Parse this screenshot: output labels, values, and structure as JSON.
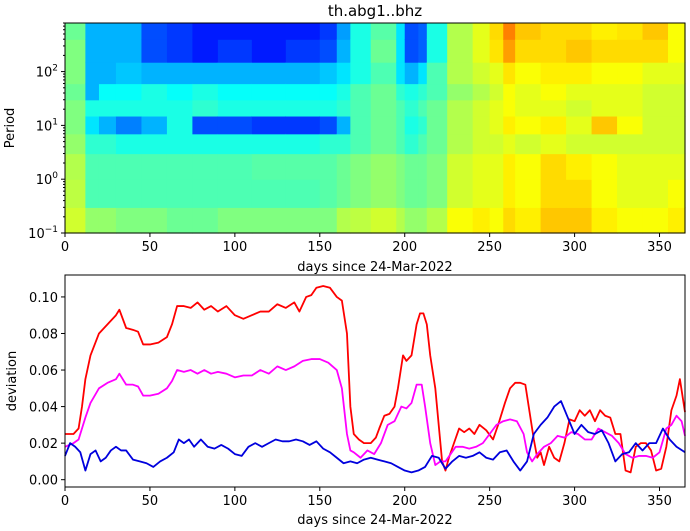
{
  "chart_data": [
    {
      "type": "heatmap",
      "title": "th.abg1..bhz",
      "xlabel": "days since 24-Mar-2022",
      "ylabel": "Period",
      "xlim": [
        0,
        365
      ],
      "ylim": [
        0.1,
        800
      ],
      "y_scale": "log",
      "colormap": "jet",
      "x_ticks": [
        0,
        50,
        100,
        150,
        200,
        250,
        300,
        350
      ],
      "x_tick_labels": [
        "0",
        "50",
        "100",
        "150",
        "200",
        "250",
        "300",
        "350"
      ],
      "y_ticks": [
        0.1,
        1,
        10,
        100
      ],
      "y_tick_labels": [
        "10",
        "10",
        "10",
        "10"
      ],
      "y_tick_exponents": [
        "−1",
        "0",
        "1",
        "2"
      ],
      "x_breaks": [
        0,
        12,
        20,
        30,
        45,
        60,
        75,
        90,
        110,
        130,
        150,
        160,
        168,
        180,
        195,
        200,
        208,
        213,
        225,
        240,
        250,
        258,
        265,
        280,
        295,
        310,
        325,
        340,
        355,
        365
      ],
      "period_bands": [
        0.1,
        0.3,
        1,
        3,
        7,
        15,
        30,
        60,
        150,
        400,
        800
      ],
      "values": [
        [
          0.58,
          0.56,
          0.55,
          0.52,
          0.5,
          0.5,
          0.48,
          0.5,
          0.5,
          0.48
        ],
        [
          0.52,
          0.45,
          0.45,
          0.42,
          0.35,
          0.4,
          0.3,
          0.3,
          0.3,
          0.3
        ],
        [
          0.52,
          0.45,
          0.45,
          0.42,
          0.3,
          0.4,
          0.38,
          0.3,
          0.3,
          0.3
        ],
        [
          0.5,
          0.45,
          0.45,
          0.4,
          0.25,
          0.4,
          0.38,
          0.32,
          0.3,
          0.3
        ],
        [
          0.5,
          0.45,
          0.45,
          0.4,
          0.3,
          0.4,
          0.4,
          0.3,
          0.2,
          0.2
        ],
        [
          0.48,
          0.45,
          0.45,
          0.4,
          0.4,
          0.4,
          0.38,
          0.3,
          0.18,
          0.18
        ],
        [
          0.48,
          0.45,
          0.45,
          0.4,
          0.2,
          0.42,
          0.4,
          0.3,
          0.15,
          0.15
        ],
        [
          0.5,
          0.45,
          0.45,
          0.4,
          0.2,
          0.4,
          0.38,
          0.3,
          0.18,
          0.15
        ],
        [
          0.5,
          0.45,
          0.46,
          0.4,
          0.18,
          0.4,
          0.38,
          0.3,
          0.15,
          0.15
        ],
        [
          0.5,
          0.45,
          0.46,
          0.4,
          0.18,
          0.4,
          0.38,
          0.3,
          0.18,
          0.15
        ],
        [
          0.5,
          0.46,
          0.46,
          0.42,
          0.2,
          0.4,
          0.38,
          0.32,
          0.2,
          0.18
        ],
        [
          0.55,
          0.48,
          0.48,
          0.42,
          0.3,
          0.42,
          0.4,
          0.35,
          0.3,
          0.28
        ],
        [
          0.56,
          0.5,
          0.5,
          0.45,
          0.45,
          0.45,
          0.45,
          0.4,
          0.4,
          0.4
        ],
        [
          0.58,
          0.52,
          0.52,
          0.48,
          0.48,
          0.48,
          0.48,
          0.45,
          0.48,
          0.46
        ],
        [
          0.55,
          0.5,
          0.5,
          0.45,
          0.45,
          0.45,
          0.42,
          0.35,
          0.35,
          0.35
        ],
        [
          0.52,
          0.48,
          0.48,
          0.42,
          0.4,
          0.42,
          0.4,
          0.3,
          0.2,
          0.2
        ],
        [
          0.52,
          0.48,
          0.48,
          0.45,
          0.42,
          0.45,
          0.42,
          0.35,
          0.22,
          0.22
        ],
        [
          0.55,
          0.5,
          0.5,
          0.48,
          0.48,
          0.48,
          0.45,
          0.45,
          0.4,
          0.4
        ],
        [
          0.62,
          0.58,
          0.58,
          0.55,
          0.55,
          0.55,
          0.52,
          0.55,
          0.55,
          0.55
        ],
        [
          0.64,
          0.6,
          0.6,
          0.58,
          0.58,
          0.58,
          0.55,
          0.58,
          0.6,
          0.6
        ],
        [
          0.62,
          0.6,
          0.6,
          0.58,
          0.6,
          0.6,
          0.58,
          0.6,
          0.65,
          0.66
        ],
        [
          0.66,
          0.64,
          0.64,
          0.6,
          0.64,
          0.62,
          0.62,
          0.65,
          0.72,
          0.75
        ],
        [
          0.64,
          0.62,
          0.62,
          0.58,
          0.62,
          0.6,
          0.6,
          0.62,
          0.66,
          0.68
        ],
        [
          0.68,
          0.66,
          0.66,
          0.6,
          0.64,
          0.6,
          0.62,
          0.64,
          0.66,
          0.66
        ],
        [
          0.68,
          0.66,
          0.64,
          0.58,
          0.6,
          0.58,
          0.6,
          0.64,
          0.68,
          0.66
        ],
        [
          0.64,
          0.62,
          0.62,
          0.58,
          0.68,
          0.6,
          0.6,
          0.62,
          0.66,
          0.64
        ],
        [
          0.62,
          0.6,
          0.6,
          0.58,
          0.62,
          0.6,
          0.6,
          0.62,
          0.66,
          0.65
        ],
        [
          0.62,
          0.6,
          0.6,
          0.58,
          0.58,
          0.58,
          0.58,
          0.6,
          0.66,
          0.68
        ],
        [
          0.64,
          0.62,
          0.6,
          0.58,
          0.58,
          0.58,
          0.58,
          0.6,
          0.62,
          0.62
        ]
      ]
    },
    {
      "type": "line",
      "xlabel": "days since 24-Mar-2022",
      "ylabel": "deviation",
      "xlim": [
        0,
        365
      ],
      "ylim": [
        -0.004,
        0.112
      ],
      "x_ticks": [
        0,
        50,
        100,
        150,
        200,
        250,
        300,
        350
      ],
      "x_tick_labels": [
        "0",
        "50",
        "100",
        "150",
        "200",
        "250",
        "300",
        "350"
      ],
      "y_ticks": [
        0.0,
        0.02,
        0.04,
        0.06,
        0.08,
        0.1
      ],
      "y_tick_labels": [
        "0.00",
        "0.02",
        "0.04",
        "0.06",
        "0.08",
        "0.10"
      ],
      "series": [
        {
          "color": "#ff0000",
          "x": [
            0,
            5,
            8,
            10,
            12,
            15,
            20,
            25,
            30,
            32,
            36,
            40,
            43,
            46,
            50,
            55,
            60,
            63,
            66,
            70,
            74,
            78,
            82,
            86,
            90,
            95,
            100,
            105,
            110,
            115,
            120,
            125,
            130,
            135,
            138,
            142,
            145,
            148,
            152,
            156,
            160,
            163,
            166,
            168,
            170,
            173,
            176,
            180,
            183,
            185,
            188,
            191,
            194,
            196,
            199,
            201,
            204,
            207,
            209,
            211,
            213,
            215,
            218,
            220,
            222,
            224,
            226,
            229,
            232,
            235,
            238,
            241,
            244,
            248,
            252,
            255,
            259,
            262,
            265,
            268,
            271,
            273,
            276,
            278,
            280,
            282,
            285,
            288,
            291,
            294,
            297,
            300,
            303,
            306,
            309,
            312,
            315,
            318,
            321,
            324,
            327,
            330,
            333,
            336,
            339,
            342,
            345,
            348,
            351,
            354,
            357,
            360,
            362,
            365
          ],
          "y": [
            0.025,
            0.025,
            0.028,
            0.04,
            0.055,
            0.068,
            0.08,
            0.085,
            0.09,
            0.093,
            0.083,
            0.082,
            0.081,
            0.074,
            0.074,
            0.075,
            0.078,
            0.085,
            0.095,
            0.095,
            0.094,
            0.097,
            0.093,
            0.095,
            0.092,
            0.095,
            0.09,
            0.088,
            0.09,
            0.092,
            0.092,
            0.096,
            0.094,
            0.097,
            0.092,
            0.1,
            0.101,
            0.105,
            0.106,
            0.105,
            0.1,
            0.098,
            0.08,
            0.04,
            0.025,
            0.022,
            0.02,
            0.02,
            0.023,
            0.028,
            0.035,
            0.036,
            0.04,
            0.05,
            0.068,
            0.065,
            0.068,
            0.085,
            0.091,
            0.091,
            0.085,
            0.068,
            0.05,
            0.03,
            0.01,
            0.005,
            0.012,
            0.02,
            0.028,
            0.026,
            0.028,
            0.025,
            0.03,
            0.027,
            0.022,
            0.03,
            0.042,
            0.05,
            0.053,
            0.053,
            0.052,
            0.04,
            0.022,
            0.012,
            0.015,
            0.008,
            0.018,
            0.012,
            0.01,
            0.02,
            0.033,
            0.032,
            0.038,
            0.035,
            0.038,
            0.032,
            0.038,
            0.035,
            0.034,
            0.025,
            0.025,
            0.005,
            0.004,
            0.018,
            0.02,
            0.02,
            0.016,
            0.005,
            0.006,
            0.018,
            0.038,
            0.046,
            0.055,
            0.037
          ]
        },
        {
          "color": "#ff00ff",
          "x": [
            0,
            5,
            8,
            12,
            15,
            20,
            25,
            30,
            32,
            36,
            40,
            43,
            46,
            50,
            55,
            60,
            63,
            66,
            70,
            74,
            78,
            82,
            86,
            90,
            95,
            100,
            105,
            110,
            115,
            120,
            125,
            130,
            135,
            140,
            145,
            150,
            155,
            160,
            163,
            166,
            168,
            170,
            174,
            178,
            182,
            186,
            190,
            194,
            198,
            201,
            204,
            207,
            210,
            212,
            215,
            218,
            221,
            224,
            227,
            230,
            234,
            238,
            242,
            246,
            250,
            254,
            258,
            262,
            266,
            270,
            272,
            275,
            278,
            282,
            286,
            290,
            294,
            298,
            302,
            306,
            310,
            314,
            318,
            322,
            326,
            330,
            334,
            338,
            342,
            346,
            350,
            354,
            357,
            360,
            363,
            365
          ],
          "y": [
            0.018,
            0.02,
            0.022,
            0.034,
            0.042,
            0.05,
            0.053,
            0.055,
            0.058,
            0.052,
            0.052,
            0.051,
            0.046,
            0.046,
            0.047,
            0.05,
            0.054,
            0.06,
            0.059,
            0.06,
            0.058,
            0.06,
            0.058,
            0.059,
            0.058,
            0.056,
            0.057,
            0.057,
            0.06,
            0.058,
            0.062,
            0.06,
            0.062,
            0.065,
            0.066,
            0.066,
            0.064,
            0.06,
            0.05,
            0.025,
            0.016,
            0.015,
            0.012,
            0.016,
            0.014,
            0.02,
            0.03,
            0.032,
            0.04,
            0.039,
            0.042,
            0.052,
            0.052,
            0.04,
            0.02,
            0.008,
            0.01,
            0.01,
            0.014,
            0.018,
            0.018,
            0.017,
            0.018,
            0.02,
            0.025,
            0.03,
            0.032,
            0.033,
            0.032,
            0.025,
            0.015,
            0.01,
            0.014,
            0.018,
            0.02,
            0.024,
            0.023,
            0.026,
            0.025,
            0.022,
            0.022,
            0.028,
            0.026,
            0.024,
            0.02,
            0.014,
            0.012,
            0.013,
            0.013,
            0.012,
            0.015,
            0.028,
            0.03,
            0.035,
            0.032,
            0.024
          ]
        },
        {
          "color": "#0000dd",
          "x": [
            0,
            3,
            6,
            9,
            12,
            15,
            18,
            21,
            24,
            27,
            30,
            33,
            36,
            40,
            44,
            48,
            52,
            56,
            60,
            64,
            67,
            70,
            73,
            76,
            80,
            84,
            88,
            92,
            96,
            100,
            104,
            108,
            112,
            116,
            120,
            124,
            128,
            132,
            136,
            140,
            144,
            148,
            152,
            156,
            160,
            164,
            168,
            172,
            176,
            180,
            184,
            188,
            192,
            196,
            200,
            204,
            208,
            212,
            216,
            220,
            224,
            228,
            232,
            236,
            240,
            244,
            248,
            252,
            256,
            260,
            264,
            268,
            272,
            276,
            280,
            284,
            288,
            292,
            296,
            300,
            304,
            308,
            312,
            316,
            320,
            324,
            328,
            332,
            336,
            340,
            344,
            348,
            352,
            356,
            360,
            365
          ],
          "y": [
            0.013,
            0.02,
            0.018,
            0.015,
            0.005,
            0.014,
            0.016,
            0.01,
            0.012,
            0.016,
            0.018,
            0.016,
            0.016,
            0.011,
            0.01,
            0.009,
            0.007,
            0.01,
            0.012,
            0.015,
            0.022,
            0.02,
            0.022,
            0.018,
            0.022,
            0.018,
            0.017,
            0.019,
            0.017,
            0.014,
            0.013,
            0.018,
            0.02,
            0.018,
            0.02,
            0.022,
            0.021,
            0.021,
            0.022,
            0.021,
            0.019,
            0.021,
            0.017,
            0.015,
            0.012,
            0.009,
            0.01,
            0.009,
            0.011,
            0.012,
            0.011,
            0.01,
            0.009,
            0.007,
            0.005,
            0.004,
            0.005,
            0.007,
            0.013,
            0.012,
            0.006,
            0.01,
            0.013,
            0.012,
            0.013,
            0.015,
            0.012,
            0.011,
            0.015,
            0.016,
            0.01,
            0.005,
            0.01,
            0.025,
            0.03,
            0.034,
            0.04,
            0.043,
            0.034,
            0.025,
            0.03,
            0.026,
            0.025,
            0.027,
            0.02,
            0.01,
            0.014,
            0.015,
            0.02,
            0.016,
            0.02,
            0.02,
            0.028,
            0.022,
            0.018,
            0.015
          ]
        }
      ]
    }
  ]
}
